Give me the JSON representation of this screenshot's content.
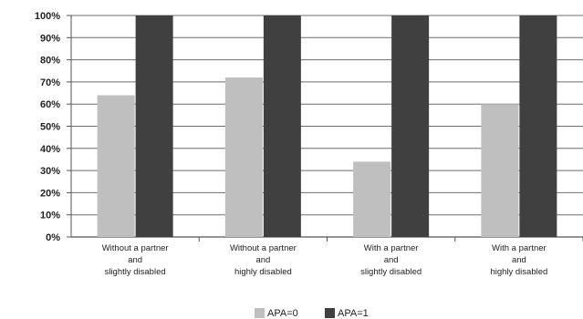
{
  "chart_data": {
    "type": "bar",
    "categories": [
      [
        "Without a partner",
        "and",
        "slightly disabled"
      ],
      [
        "Without a partner",
        "and",
        "highly disabled"
      ],
      [
        "With a partner",
        "and",
        "slightly disabled"
      ],
      [
        "With a partner",
        "and",
        "highly disabled"
      ]
    ],
    "series": [
      {
        "name": "APA=0",
        "color": "#bfbfbf",
        "values": [
          64,
          72,
          34,
          60
        ]
      },
      {
        "name": "APA=1",
        "color": "#404040",
        "values": [
          100,
          100,
          100,
          100
        ]
      }
    ],
    "yticks": [
      "0%",
      "10%",
      "20%",
      "30%",
      "40%",
      "50%",
      "60%",
      "70%",
      "80%",
      "90%",
      "100%"
    ],
    "ylim": [
      0,
      100
    ],
    "grid": true,
    "legend_position": "bottom"
  }
}
